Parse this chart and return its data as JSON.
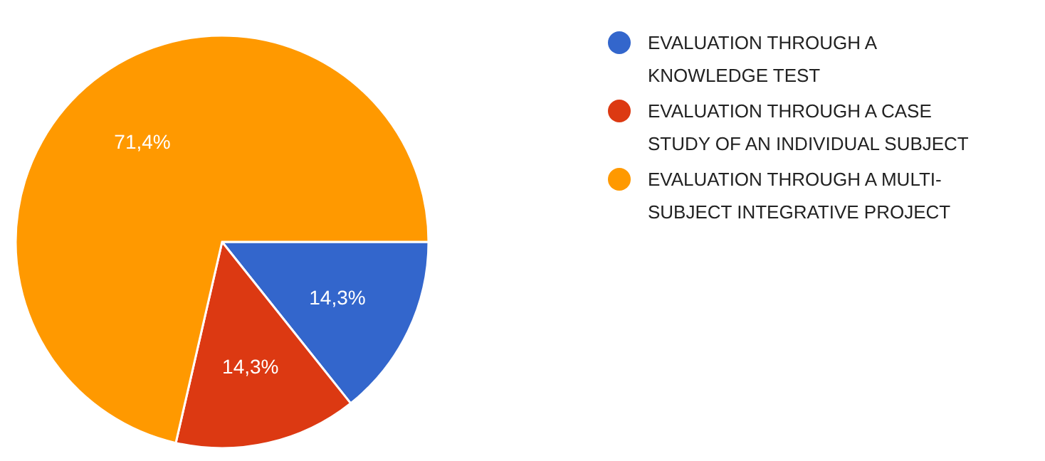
{
  "chart_data": {
    "type": "pie",
    "categories": [
      "EVALUATION THROUGH A KNOWLEDGE TEST",
      "EVALUATION THROUGH A CASE STUDY OF AN INDIVIDUAL SUBJECT",
      "EVALUATION THROUGH A MULTI-SUBJECT INTEGRATIVE PROJECT"
    ],
    "values": [
      14.3,
      14.3,
      71.4
    ],
    "colors": [
      "#3366cc",
      "#dc3912",
      "#ff9900"
    ],
    "value_labels": [
      "14,3%",
      "14,3%",
      "71,4%"
    ],
    "legend": "right"
  }
}
